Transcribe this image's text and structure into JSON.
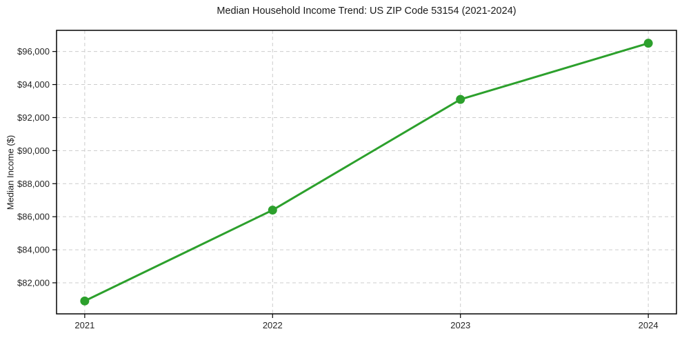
{
  "figure": {
    "background": "#ffffff"
  },
  "chart_data": {
    "type": "line",
    "title": "Median Household Income Trend: US ZIP Code 53154 (2021-2024)",
    "xlabel": "",
    "ylabel": "Median Income ($)",
    "x": [
      2021,
      2022,
      2023,
      2024
    ],
    "values": [
      80900,
      86400,
      93100,
      96500
    ],
    "xlim": [
      2020.85,
      2024.15
    ],
    "ylim": [
      80120,
      97280
    ],
    "xticks": [
      2021,
      2022,
      2023,
      2024
    ],
    "xtick_labels": [
      "2021",
      "2022",
      "2023",
      "2024"
    ],
    "yticks": [
      82000,
      84000,
      86000,
      88000,
      90000,
      92000,
      94000,
      96000
    ],
    "ytick_labels": [
      "$82,000",
      "$84,000",
      "$86,000",
      "$88,000",
      "$90,000",
      "$92,000",
      "$94,000",
      "$96,000"
    ],
    "grid": true,
    "legend": "none",
    "line_color": "#2ca02c",
    "marker": "circle",
    "grid_color": "#cccccc",
    "axis_color": "#000000",
    "tick_label_color": "#262626"
  }
}
